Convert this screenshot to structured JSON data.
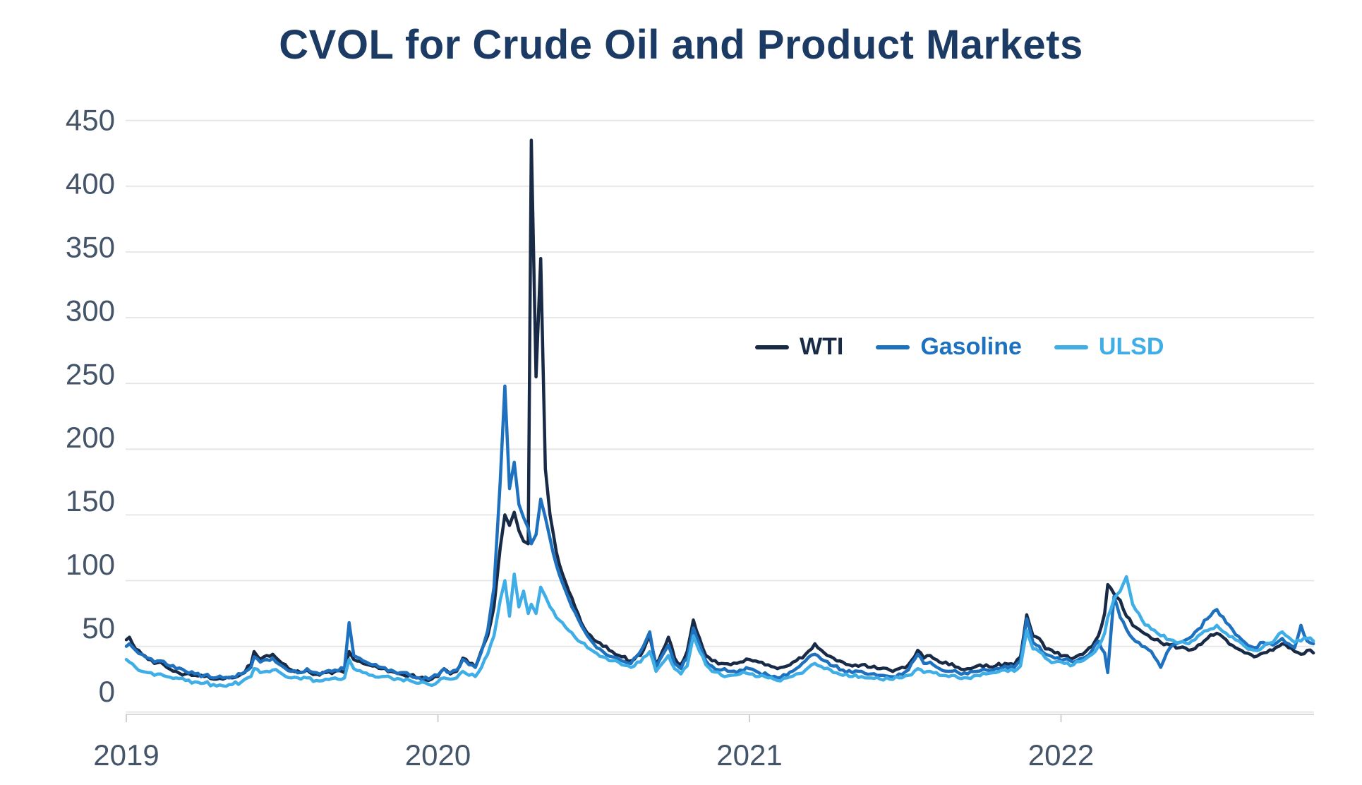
{
  "page": {
    "background": "#ffffff"
  },
  "title": {
    "text": "CVOL for Crude Oil and Product Markets",
    "color": "#1b3a64"
  },
  "axes": {
    "y_ticks": [
      450,
      400,
      350,
      300,
      250,
      200,
      150,
      100,
      50,
      0
    ],
    "x_ticks": [
      2019,
      2020,
      2021,
      2022
    ],
    "tick_label_color": "#445469",
    "grid_color": "#e5e5e5",
    "axis_line_color": "#d9d9d9"
  },
  "chart_data": {
    "type": "line",
    "title": "CVOL for Crude Oil and Product Markets",
    "xlabel": "",
    "ylabel": "",
    "ylim": [
      0,
      450
    ],
    "xlim": [
      2019,
      2022.85
    ],
    "grid": "horizontal",
    "legend_position": "center-right",
    "x_unit": "decimal year",
    "x": [
      2019.0,
      2019.01,
      2019.03,
      2019.05,
      2019.07,
      2019.09,
      2019.11,
      2019.13,
      2019.16,
      2019.19,
      2019.22,
      2019.25,
      2019.28,
      2019.31,
      2019.34,
      2019.37,
      2019.4,
      2019.41,
      2019.43,
      2019.45,
      2019.47,
      2019.5,
      2019.53,
      2019.56,
      2019.58,
      2019.61,
      2019.64,
      2019.67,
      2019.7,
      2019.715,
      2019.73,
      2019.76,
      2019.79,
      2019.82,
      2019.85,
      2019.88,
      2019.91,
      2019.94,
      2019.97,
      2020.0,
      2020.02,
      2020.04,
      2020.06,
      2020.08,
      2020.1,
      2020.12,
      2020.14,
      2020.16,
      2020.18,
      2020.2,
      2020.215,
      2020.23,
      2020.245,
      2020.26,
      2020.275,
      2020.29,
      2020.3,
      2020.315,
      2020.33,
      2020.345,
      2020.36,
      2020.38,
      2020.4,
      2020.42,
      2020.44,
      2020.46,
      2020.48,
      2020.5,
      2020.53,
      2020.56,
      2020.59,
      2020.62,
      2020.65,
      2020.68,
      2020.7,
      2020.72,
      2020.74,
      2020.76,
      2020.78,
      2020.8,
      2020.82,
      2020.84,
      2020.86,
      2020.88,
      2020.91,
      2020.94,
      2020.97,
      2021.0,
      2021.03,
      2021.06,
      2021.09,
      2021.12,
      2021.15,
      2021.18,
      2021.21,
      2021.24,
      2021.27,
      2021.3,
      2021.33,
      2021.36,
      2021.39,
      2021.42,
      2021.45,
      2021.48,
      2021.51,
      2021.54,
      2021.56,
      2021.58,
      2021.61,
      2021.64,
      2021.67,
      2021.7,
      2021.73,
      2021.76,
      2021.79,
      2021.82,
      2021.85,
      2021.87,
      2021.89,
      2021.91,
      2021.93,
      2021.95,
      2021.98,
      2022.01,
      2022.04,
      2022.07,
      2022.1,
      2022.12,
      2022.14,
      2022.15,
      2022.17,
      2022.19,
      2022.21,
      2022.23,
      2022.26,
      2022.29,
      2022.32,
      2022.35,
      2022.38,
      2022.41,
      2022.44,
      2022.47,
      2022.5,
      2022.53,
      2022.56,
      2022.59,
      2022.62,
      2022.65,
      2022.68,
      2022.71,
      2022.73,
      2022.75,
      2022.77,
      2022.79,
      2022.81
    ],
    "series": [
      {
        "name": "WTI",
        "color": "#182a46",
        "values": [
          55,
          57,
          48,
          44,
          40,
          37,
          38,
          34,
          31,
          29,
          28,
          27,
          25,
          25,
          26,
          29,
          36,
          46,
          40,
          43,
          44,
          37,
          32,
          30,
          32,
          29,
          30,
          31,
          30,
          46,
          40,
          37,
          35,
          33,
          31,
          29,
          28,
          26,
          24,
          27,
          33,
          29,
          31,
          41,
          37,
          34,
          47,
          58,
          80,
          125,
          150,
          142,
          152,
          138,
          130,
          128,
          435,
          255,
          345,
          185,
          150,
          122,
          105,
          92,
          80,
          68,
          60,
          55,
          50,
          46,
          42,
          39,
          43,
          58,
          36,
          46,
          57,
          41,
          36,
          46,
          70,
          56,
          43,
          39,
          37,
          36,
          38,
          40,
          38,
          36,
          33,
          35,
          39,
          44,
          52,
          45,
          41,
          38,
          35,
          36,
          34,
          33,
          32,
          33,
          36,
          47,
          41,
          43,
          38,
          36,
          34,
          33,
          35,
          36,
          35,
          37,
          36,
          42,
          74,
          58,
          56,
          48,
          45,
          43,
          41,
          44,
          50,
          58,
          75,
          97,
          90,
          85,
          73,
          66,
          61,
          56,
          53,
          51,
          49,
          47,
          51,
          56,
          60,
          55,
          49,
          45,
          42,
          45,
          47,
          52,
          49,
          46,
          44,
          47,
          45
        ]
      },
      {
        "name": "Gasoline",
        "color": "#1e71bf",
        "values": [
          50,
          52,
          47,
          44,
          41,
          38,
          39,
          36,
          33,
          31,
          29,
          28,
          26,
          26,
          27,
          29,
          34,
          42,
          38,
          40,
          41,
          35,
          31,
          30,
          33,
          30,
          31,
          32,
          33,
          68,
          43,
          39,
          36,
          34,
          32,
          30,
          28,
          26,
          25,
          28,
          33,
          30,
          32,
          40,
          36,
          34,
          46,
          62,
          95,
          175,
          248,
          170,
          190,
          158,
          148,
          140,
          128,
          135,
          162,
          148,
          132,
          112,
          98,
          86,
          76,
          66,
          58,
          52,
          46,
          42,
          39,
          37,
          46,
          61,
          34,
          43,
          51,
          37,
          33,
          41,
          64,
          51,
          39,
          35,
          32,
          31,
          32,
          33,
          30,
          28,
          26,
          28,
          33,
          39,
          44,
          39,
          35,
          32,
          30,
          31,
          29,
          28,
          27,
          29,
          32,
          44,
          37,
          38,
          33,
          31,
          30,
          29,
          31,
          32,
          33,
          35,
          34,
          39,
          71,
          53,
          50,
          44,
          41,
          40,
          38,
          41,
          47,
          54,
          45,
          30,
          88,
          72,
          63,
          56,
          50,
          46,
          34,
          49,
          53,
          56,
          63,
          71,
          78,
          68,
          59,
          53,
          49,
          53,
          51,
          56,
          52,
          49,
          66,
          54,
          52
        ]
      },
      {
        "name": "ULSD",
        "color": "#3fade6",
        "values": [
          40,
          38,
          34,
          31,
          30,
          28,
          29,
          27,
          26,
          24,
          23,
          22,
          21,
          20,
          21,
          23,
          27,
          33,
          30,
          31,
          32,
          29,
          26,
          25,
          26,
          24,
          25,
          26,
          26,
          40,
          33,
          30,
          28,
          27,
          26,
          25,
          24,
          22,
          21,
          23,
          26,
          25,
          26,
          31,
          28,
          27,
          34,
          44,
          58,
          85,
          100,
          73,
          105,
          80,
          92,
          75,
          82,
          75,
          95,
          88,
          80,
          72,
          68,
          62,
          57,
          53,
          49,
          46,
          42,
          39,
          36,
          34,
          38,
          46,
          31,
          37,
          43,
          33,
          29,
          35,
          58,
          46,
          36,
          31,
          28,
          28,
          29,
          29,
          27,
          26,
          24,
          26,
          29,
          32,
          37,
          33,
          30,
          28,
          27,
          27,
          26,
          25,
          25,
          26,
          28,
          33,
          30,
          31,
          28,
          27,
          26,
          26,
          28,
          29,
          30,
          32,
          31,
          35,
          62,
          48,
          46,
          41,
          38,
          37,
          36,
          39,
          44,
          50,
          60,
          72,
          86,
          92,
          103,
          82,
          70,
          63,
          58,
          55,
          53,
          52,
          58,
          62,
          66,
          60,
          55,
          50,
          47,
          50,
          53,
          61,
          57,
          53,
          54,
          56,
          54
        ]
      }
    ]
  }
}
